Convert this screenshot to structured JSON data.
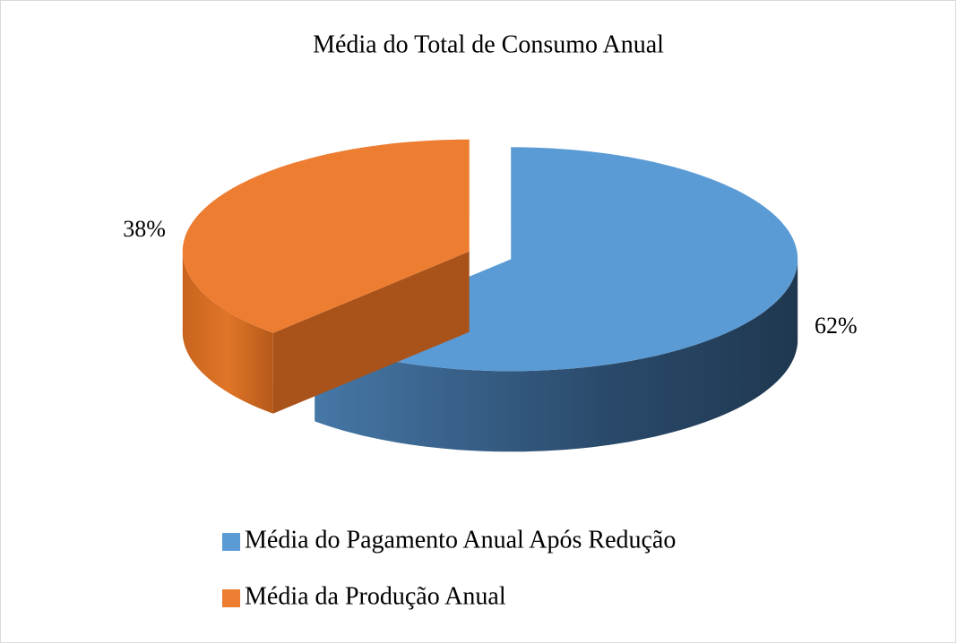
{
  "chart_data": {
    "type": "pie",
    "title": "Média do Total de Consumo Anual",
    "categories": [
      "Média do Pagamento Anual Após Redução",
      "Média da Produção Anual"
    ],
    "values": [
      62,
      38
    ],
    "value_labels": [
      "62%",
      "38%"
    ],
    "colors": [
      "#5b9bd5",
      "#ed7d31"
    ],
    "legend": "bottom"
  }
}
